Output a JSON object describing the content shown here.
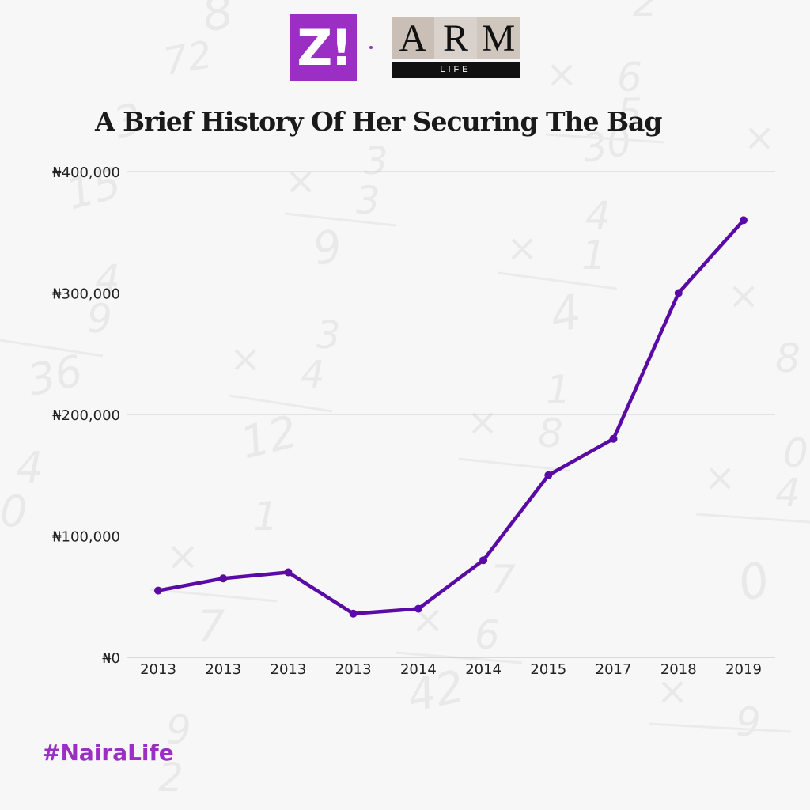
{
  "header": {
    "logo_zi_text": "Z!",
    "logo_arm_letters": [
      "A",
      "R",
      "M"
    ],
    "logo_arm_sub": "LIFE"
  },
  "colors": {
    "line": "#5a0aa5",
    "brand_purple": "#9b2fc3",
    "gridline": "#cfcfcf"
  },
  "footer": {
    "hashtag": "#NairaLife"
  },
  "chart_data": {
    "type": "line",
    "title": "A Brief History Of Her Securing The Bag",
    "xlabel": "",
    "ylabel": "",
    "categories": [
      "2013",
      "2013",
      "2013",
      "2013",
      "2014",
      "2014",
      "2015",
      "2017",
      "2018",
      "2019"
    ],
    "series": [
      {
        "values": [
          55000,
          65000,
          70000,
          36000,
          40000,
          80000,
          150000,
          180000,
          300000,
          360000
        ]
      }
    ],
    "ylim": [
      0,
      400000
    ],
    "yticks": [
      0,
      100000,
      200000,
      300000,
      400000
    ],
    "ytick_labels": [
      "₦0",
      "₦100,000",
      "₦200,000",
      "₦300,000",
      "₦400,000"
    ],
    "grid": true,
    "legend": "none",
    "markers": true
  }
}
